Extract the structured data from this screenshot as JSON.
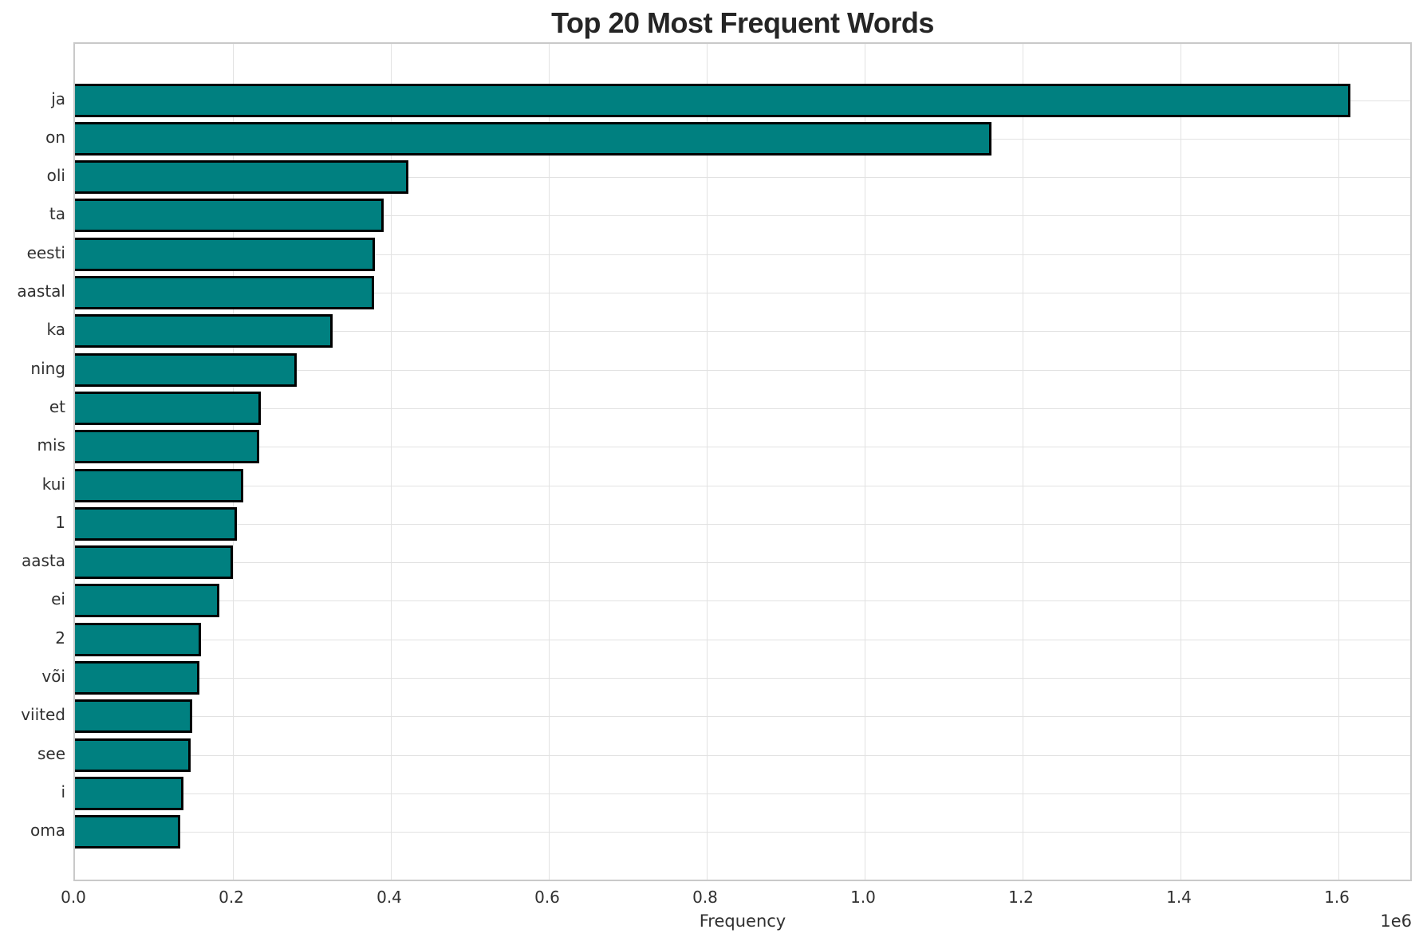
{
  "chart_data": {
    "type": "bar",
    "orientation": "horizontal",
    "title": "Top 20 Most Frequent Words",
    "xlabel": "Frequency",
    "ylabel": "",
    "x_offset_label": "1e6",
    "categories": [
      "ja",
      "on",
      "oli",
      "ta",
      "eesti",
      "aastal",
      "ka",
      "ning",
      "et",
      "mis",
      "kui",
      "1",
      "aasta",
      "ei",
      "2",
      "või",
      "viited",
      "see",
      "i",
      "oma"
    ],
    "values": [
      1615000,
      1161000,
      422000,
      391000,
      380000,
      379000,
      326000,
      281000,
      235000,
      233000,
      213000,
      205000,
      200000,
      183000,
      160000,
      158000,
      148000,
      146000,
      137000,
      133000
    ],
    "xlim": [
      0,
      1695000
    ],
    "x_ticks": [
      0,
      200000,
      400000,
      600000,
      800000,
      1000000,
      1200000,
      1400000,
      1600000
    ],
    "x_tick_labels": [
      "0.0",
      "0.2",
      "0.4",
      "0.6",
      "0.8",
      "1.0",
      "1.2",
      "1.4",
      "1.6"
    ],
    "grid": true,
    "legend": false,
    "colors": {
      "bar_fill": "#008080",
      "bar_edge": "#000000",
      "grid_line": "#e2e2e2",
      "spine": "#c9c9c9",
      "text": "#303030",
      "title_text": "#252525",
      "background": "#ffffff"
    }
  }
}
